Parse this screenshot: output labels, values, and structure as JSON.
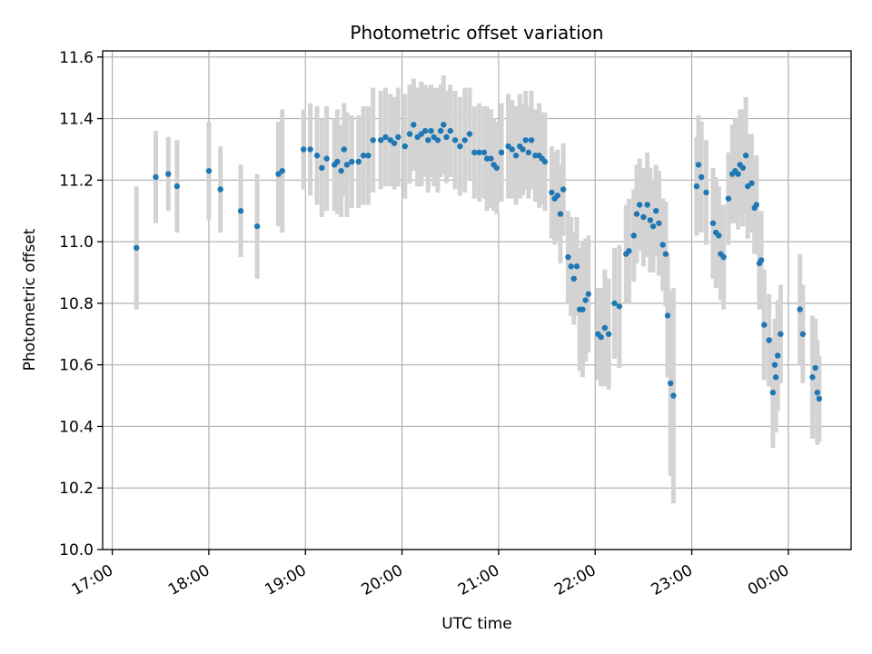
{
  "chart_data": {
    "type": "scatter",
    "title": "Photometric offset variation",
    "xlabel": "UTC time",
    "ylabel": "Photometric offset",
    "ylim": [
      10.0,
      11.62
    ],
    "xlim_hours": [
      16.9,
      24.65
    ],
    "x_ticks": [
      {
        "hour": 17,
        "label": "17:00"
      },
      {
        "hour": 18,
        "label": "18:00"
      },
      {
        "hour": 19,
        "label": "19:00"
      },
      {
        "hour": 20,
        "label": "20:00"
      },
      {
        "hour": 21,
        "label": "21:00"
      },
      {
        "hour": 22,
        "label": "22:00"
      },
      {
        "hour": 23,
        "label": "23:00"
      },
      {
        "hour": 24,
        "label": "00:00"
      }
    ],
    "y_ticks": [
      "10.0",
      "10.2",
      "10.4",
      "10.6",
      "10.8",
      "11.0",
      "11.2",
      "11.4",
      "11.6"
    ],
    "grid": true,
    "marker_color": "#1f77b4",
    "errorbar_color": "#d3d3d3",
    "points_format": "[x_hour_utc, offset, error_half_width]",
    "points": [
      [
        17.25,
        10.98,
        0.2
      ],
      [
        17.45,
        11.21,
        0.15
      ],
      [
        17.58,
        11.22,
        0.12
      ],
      [
        17.67,
        11.18,
        0.15
      ],
      [
        18.0,
        11.23,
        0.16
      ],
      [
        18.12,
        11.17,
        0.14
      ],
      [
        18.33,
        11.1,
        0.15
      ],
      [
        18.5,
        11.05,
        0.17
      ],
      [
        18.72,
        11.22,
        0.17
      ],
      [
        18.76,
        11.23,
        0.2
      ],
      [
        18.98,
        11.3,
        0.13
      ],
      [
        19.05,
        11.3,
        0.15
      ],
      [
        19.12,
        11.28,
        0.16
      ],
      [
        19.17,
        11.24,
        0.16
      ],
      [
        19.22,
        11.27,
        0.17
      ],
      [
        19.3,
        11.25,
        0.15
      ],
      [
        19.33,
        11.26,
        0.17
      ],
      [
        19.37,
        11.23,
        0.15
      ],
      [
        19.4,
        11.3,
        0.15
      ],
      [
        19.43,
        11.25,
        0.17
      ],
      [
        19.48,
        11.26,
        0.15
      ],
      [
        19.55,
        11.26,
        0.15
      ],
      [
        19.6,
        11.28,
        0.16
      ],
      [
        19.65,
        11.28,
        0.16
      ],
      [
        19.7,
        11.33,
        0.17
      ],
      [
        19.78,
        11.33,
        0.16
      ],
      [
        19.83,
        11.34,
        0.16
      ],
      [
        19.88,
        11.33,
        0.15
      ],
      [
        19.92,
        11.32,
        0.15
      ],
      [
        19.96,
        11.34,
        0.16
      ],
      [
        20.03,
        11.31,
        0.17
      ],
      [
        20.08,
        11.35,
        0.16
      ],
      [
        20.12,
        11.38,
        0.15
      ],
      [
        20.16,
        11.34,
        0.16
      ],
      [
        20.2,
        11.35,
        0.17
      ],
      [
        20.24,
        11.36,
        0.15
      ],
      [
        20.27,
        11.33,
        0.17
      ],
      [
        20.3,
        11.36,
        0.15
      ],
      [
        20.33,
        11.34,
        0.16
      ],
      [
        20.37,
        11.33,
        0.17
      ],
      [
        20.4,
        11.36,
        0.15
      ],
      [
        20.43,
        11.38,
        0.16
      ],
      [
        20.46,
        11.34,
        0.15
      ],
      [
        20.5,
        11.36,
        0.15
      ],
      [
        20.55,
        11.33,
        0.16
      ],
      [
        20.6,
        11.31,
        0.16
      ],
      [
        20.65,
        11.33,
        0.17
      ],
      [
        20.7,
        11.35,
        0.15
      ],
      [
        20.75,
        11.29,
        0.15
      ],
      [
        20.8,
        11.29,
        0.16
      ],
      [
        20.85,
        11.29,
        0.15
      ],
      [
        20.88,
        11.27,
        0.17
      ],
      [
        20.92,
        11.27,
        0.16
      ],
      [
        20.95,
        11.25,
        0.15
      ],
      [
        20.98,
        11.24,
        0.15
      ],
      [
        21.03,
        11.29,
        0.16
      ],
      [
        21.1,
        11.31,
        0.17
      ],
      [
        21.14,
        11.3,
        0.16
      ],
      [
        21.18,
        11.28,
        0.16
      ],
      [
        21.22,
        11.31,
        0.17
      ],
      [
        21.25,
        11.3,
        0.15
      ],
      [
        21.28,
        11.33,
        0.16
      ],
      [
        21.31,
        11.29,
        0.15
      ],
      [
        21.34,
        11.33,
        0.16
      ],
      [
        21.38,
        11.28,
        0.15
      ],
      [
        21.42,
        11.28,
        0.17
      ],
      [
        21.45,
        11.27,
        0.15
      ],
      [
        21.48,
        11.26,
        0.16
      ],
      [
        21.55,
        11.16,
        0.15
      ],
      [
        21.58,
        11.14,
        0.15
      ],
      [
        21.61,
        11.15,
        0.15
      ],
      [
        21.64,
        11.09,
        0.16
      ],
      [
        21.67,
        11.17,
        0.15
      ],
      [
        21.72,
        10.95,
        0.15
      ],
      [
        21.75,
        10.92,
        0.16
      ],
      [
        21.78,
        10.88,
        0.15
      ],
      [
        21.81,
        10.92,
        0.16
      ],
      [
        21.84,
        10.78,
        0.2
      ],
      [
        21.87,
        10.78,
        0.22
      ],
      [
        21.9,
        10.81,
        0.2
      ],
      [
        21.93,
        10.83,
        0.19
      ],
      [
        22.03,
        10.7,
        0.15
      ],
      [
        22.06,
        10.69,
        0.16
      ],
      [
        22.1,
        10.72,
        0.19
      ],
      [
        22.14,
        10.7,
        0.18
      ],
      [
        22.2,
        10.8,
        0.18
      ],
      [
        22.25,
        10.79,
        0.2
      ],
      [
        22.32,
        10.96,
        0.16
      ],
      [
        22.35,
        10.97,
        0.17
      ],
      [
        22.4,
        11.02,
        0.15
      ],
      [
        22.43,
        11.09,
        0.16
      ],
      [
        22.46,
        11.12,
        0.15
      ],
      [
        22.5,
        11.08,
        0.16
      ],
      [
        22.54,
        11.12,
        0.17
      ],
      [
        22.57,
        11.07,
        0.17
      ],
      [
        22.6,
        11.05,
        0.15
      ],
      [
        22.63,
        11.1,
        0.15
      ],
      [
        22.66,
        11.06,
        0.17
      ],
      [
        22.7,
        10.99,
        0.15
      ],
      [
        22.73,
        10.96,
        0.17
      ],
      [
        22.75,
        10.76,
        0.2
      ],
      [
        22.78,
        10.54,
        0.3
      ],
      [
        22.81,
        10.5,
        0.35
      ],
      [
        23.05,
        11.18,
        0.16
      ],
      [
        23.07,
        11.25,
        0.16
      ],
      [
        23.1,
        11.21,
        0.18
      ],
      [
        23.15,
        11.16,
        0.17
      ],
      [
        23.22,
        11.06,
        0.18
      ],
      [
        23.25,
        11.03,
        0.18
      ],
      [
        23.28,
        11.02,
        0.16
      ],
      [
        23.3,
        10.96,
        0.15
      ],
      [
        23.33,
        10.95,
        0.17
      ],
      [
        23.38,
        11.14,
        0.15
      ],
      [
        23.42,
        11.22,
        0.16
      ],
      [
        23.45,
        11.23,
        0.17
      ],
      [
        23.48,
        11.22,
        0.18
      ],
      [
        23.5,
        11.25,
        0.18
      ],
      [
        23.53,
        11.24,
        0.19
      ],
      [
        23.56,
        11.28,
        0.19
      ],
      [
        23.58,
        11.18,
        0.17
      ],
      [
        23.62,
        11.19,
        0.16
      ],
      [
        23.65,
        11.11,
        0.15
      ],
      [
        23.67,
        11.12,
        0.16
      ],
      [
        23.7,
        10.93,
        0.15
      ],
      [
        23.72,
        10.94,
        0.16
      ],
      [
        23.75,
        10.73,
        0.18
      ],
      [
        23.8,
        10.68,
        0.15
      ],
      [
        23.84,
        10.51,
        0.18
      ],
      [
        23.86,
        10.6,
        0.15
      ],
      [
        23.87,
        10.56,
        0.18
      ],
      [
        23.89,
        10.63,
        0.18
      ],
      [
        23.92,
        10.7,
        0.16
      ],
      [
        24.12,
        10.78,
        0.18
      ],
      [
        24.15,
        10.7,
        0.16
      ],
      [
        24.25,
        10.56,
        0.2
      ],
      [
        24.28,
        10.59,
        0.16
      ],
      [
        24.3,
        10.51,
        0.17
      ],
      [
        24.32,
        10.49,
        0.14
      ]
    ]
  }
}
